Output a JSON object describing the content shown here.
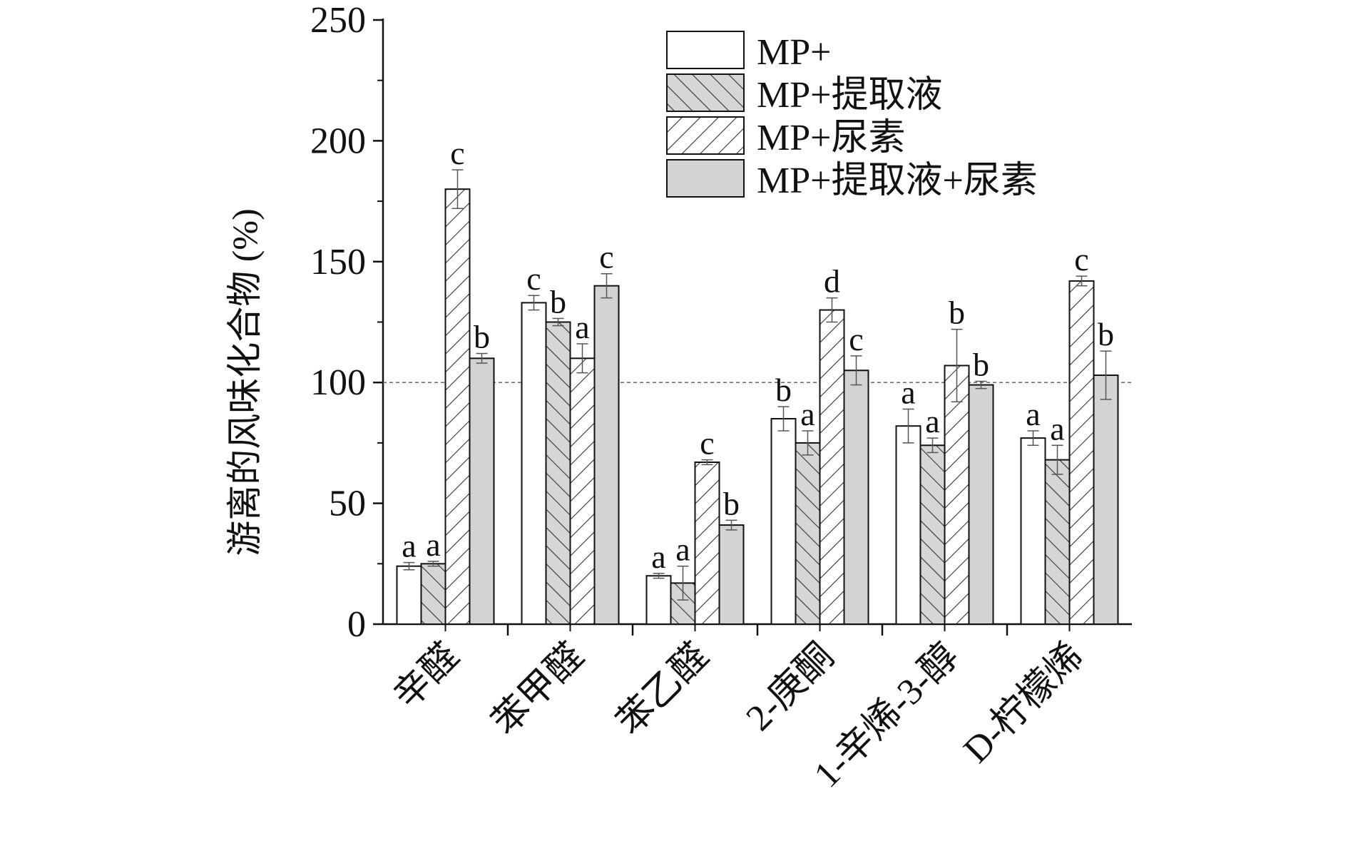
{
  "chart_data": {
    "type": "bar",
    "ylabel": "游离的风味化合物 (%)",
    "xlabel": "",
    "ylim": [
      0,
      250
    ],
    "yticks": [
      0,
      50,
      100,
      150,
      200,
      250
    ],
    "reference_line": 100,
    "grid": false,
    "legend_position": "top-right",
    "categories": [
      "辛醛",
      "苯甲醛",
      "苯乙醛",
      "2-庚酮",
      "1-辛烯-3-醇",
      "D-柠檬烯"
    ],
    "series": [
      {
        "name": "MP+",
        "fill": "#ffffff",
        "pattern": "none",
        "values": [
          24,
          133,
          20,
          85,
          82,
          77
        ],
        "errors": [
          1.5,
          3,
          1,
          5,
          7,
          3
        ],
        "labels": [
          "a",
          "c",
          "a",
          "b",
          "a",
          "a"
        ]
      },
      {
        "name": "MP+提取液",
        "fill": "#d6d6d6",
        "pattern": "diag-right",
        "values": [
          25,
          125,
          17,
          75,
          74,
          68
        ],
        "errors": [
          1,
          1.5,
          7,
          5,
          3,
          6
        ],
        "labels": [
          "a",
          "b",
          "a",
          "a",
          "a",
          "a"
        ]
      },
      {
        "name": "MP+尿素",
        "fill": "#ffffff",
        "pattern": "diag-left",
        "values": [
          180,
          110,
          67,
          130,
          107,
          142
        ],
        "errors": [
          8,
          6,
          1,
          5,
          15,
          2
        ],
        "labels": [
          "c",
          "a",
          "c",
          "d",
          "b",
          "c"
        ]
      },
      {
        "name": "MP+提取液+尿素",
        "fill": "#d3d3d3",
        "pattern": "none",
        "values": [
          110,
          140,
          41,
          105,
          99,
          103
        ],
        "errors": [
          2,
          5,
          2,
          6,
          1.5,
          10
        ],
        "labels": [
          "b",
          "c",
          "b",
          "c",
          "b",
          "b"
        ]
      }
    ]
  }
}
